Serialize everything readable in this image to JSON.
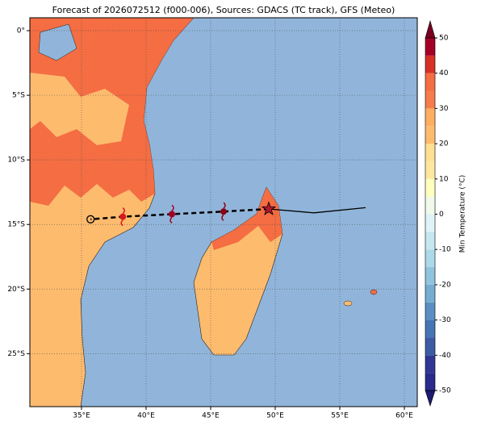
{
  "chart_data": {
    "type": "map",
    "title": "Forecast of 2026072512 (f000-006), Sources: GDACS (TC track), GFS (Meteo)",
    "xlim": [
      31,
      61
    ],
    "ylim": [
      -29.1,
      1
    ],
    "xticks": [
      {
        "value": 35,
        "label": "35°E"
      },
      {
        "value": 40,
        "label": "40°E"
      },
      {
        "value": 45,
        "label": "45°E"
      },
      {
        "value": 50,
        "label": "50°E"
      },
      {
        "value": 55,
        "label": "55°E"
      },
      {
        "value": 60,
        "label": "60°E"
      }
    ],
    "yticks": [
      {
        "value": 0,
        "label": "0°"
      },
      {
        "value": -5,
        "label": "5°S"
      },
      {
        "value": -10,
        "label": "10°S"
      },
      {
        "value": -15,
        "label": "15°S"
      },
      {
        "value": -20,
        "label": "20°S"
      },
      {
        "value": -25,
        "label": "25°S"
      }
    ],
    "grid": true,
    "track": {
      "observed": {
        "x": [
          57,
          53,
          49.5
        ],
        "y": [
          -13.7,
          -14.1,
          -13.8
        ]
      },
      "forecast": {
        "x": [
          49.5,
          46,
          42,
          38.2,
          35.7
        ],
        "y": [
          -13.8,
          -14.0,
          -14.2,
          -14.4,
          -14.6
        ]
      }
    },
    "colorbar": {
      "label": "Min Temperature (°C)",
      "levels": [
        -50,
        -45,
        -40,
        -35,
        -30,
        -25,
        -20,
        -15,
        -10,
        -5,
        0,
        5,
        10,
        15,
        20,
        25,
        30,
        35,
        40,
        45,
        50
      ],
      "colors": [
        "#2a2a8c",
        "#313695",
        "#3d5aa5",
        "#4575b4",
        "#5b8ec2",
        "#74add1",
        "#90c3dd",
        "#abd9e9",
        "#c6e6f0",
        "#e0f3f8",
        "#f0f9ea",
        "#ffffbf",
        "#fee8a0",
        "#fee090",
        "#fdbb6e",
        "#fdae61",
        "#f67c4a",
        "#f46d43",
        "#d73027",
        "#a50026"
      ],
      "under_color": "#1c1c70",
      "over_color": "#7a0020",
      "ticks": [
        -50,
        -40,
        -30,
        -20,
        -10,
        0,
        10,
        20,
        30,
        40,
        50
      ]
    }
  }
}
